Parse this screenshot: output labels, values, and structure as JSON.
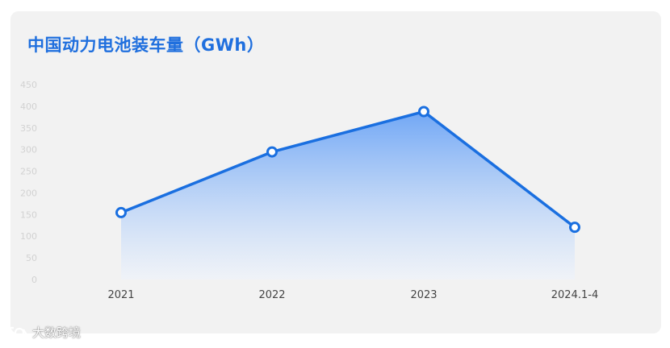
{
  "chart_data": {
    "type": "area",
    "title": "中国动力电池装车量（GWh）",
    "categories": [
      "2021",
      "2022",
      "2023",
      "2024.1-4"
    ],
    "series": [
      {
        "values": [
          154.5,
          294.6,
          387.7,
          120.6
        ]
      }
    ],
    "yticks": [
      "0",
      "50",
      "100",
      "150",
      "200",
      "250",
      "300",
      "350",
      "400",
      "450"
    ],
    "ylim": [
      0,
      450
    ],
    "grid": false,
    "legend": "none",
    "colors": {
      "line": "#1a6fe0",
      "fill_top": "#6aa3f5",
      "fill_bottom": "#eef3fb",
      "marker_fill": "#ffffff"
    }
  },
  "watermark": {
    "text": "大数跨境",
    "logo": "brand-logo-icon"
  }
}
